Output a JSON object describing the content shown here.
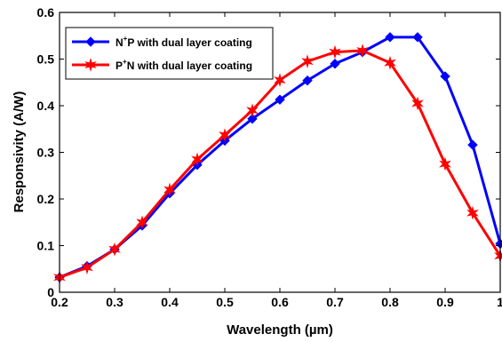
{
  "chart_data": {
    "type": "line",
    "title": "",
    "xlabel": "Wavelength (µm)",
    "ylabel": "Responsivity (A/W)",
    "xlim": [
      0.2,
      1.0
    ],
    "ylim": [
      0,
      0.6
    ],
    "xticks": [
      "0.2",
      "0.3",
      "0.4",
      "0.5",
      "0.6",
      "0.7",
      "0.8",
      "0.9",
      "1"
    ],
    "yticks": [
      "0",
      "0.1",
      "0.2",
      "0.3",
      "0.4",
      "0.5",
      "0.6"
    ],
    "grid": false,
    "legend_position": "top-left",
    "series": [
      {
        "name": "N+P with dual layer coating",
        "legend_base1": "N",
        "legend_sup": "+",
        "legend_rest": "P with dual layer coating",
        "color": "#0000ff",
        "marker": "diamond",
        "x": [
          0.2,
          0.25,
          0.3,
          0.35,
          0.4,
          0.45,
          0.5,
          0.55,
          0.6,
          0.65,
          0.7,
          0.75,
          0.8,
          0.85,
          0.9,
          0.95,
          1.0
        ],
        "values": [
          0.032,
          0.056,
          0.092,
          0.143,
          0.212,
          0.273,
          0.325,
          0.372,
          0.413,
          0.454,
          0.49,
          0.515,
          0.547,
          0.547,
          0.463,
          0.316,
          0.104
        ]
      },
      {
        "name": "P+N with dual layer coating",
        "legend_base1": "P",
        "legend_sup": "+",
        "legend_rest": "N with dual layer coating",
        "color": "#ff0000",
        "marker": "star",
        "x": [
          0.2,
          0.25,
          0.3,
          0.35,
          0.4,
          0.45,
          0.5,
          0.55,
          0.6,
          0.65,
          0.7,
          0.75,
          0.8,
          0.85,
          0.9,
          0.95,
          1.0
        ],
        "values": [
          0.032,
          0.053,
          0.092,
          0.15,
          0.22,
          0.285,
          0.337,
          0.39,
          0.455,
          0.495,
          0.515,
          0.518,
          0.492,
          0.405,
          0.275,
          0.17,
          0.078
        ]
      }
    ]
  }
}
